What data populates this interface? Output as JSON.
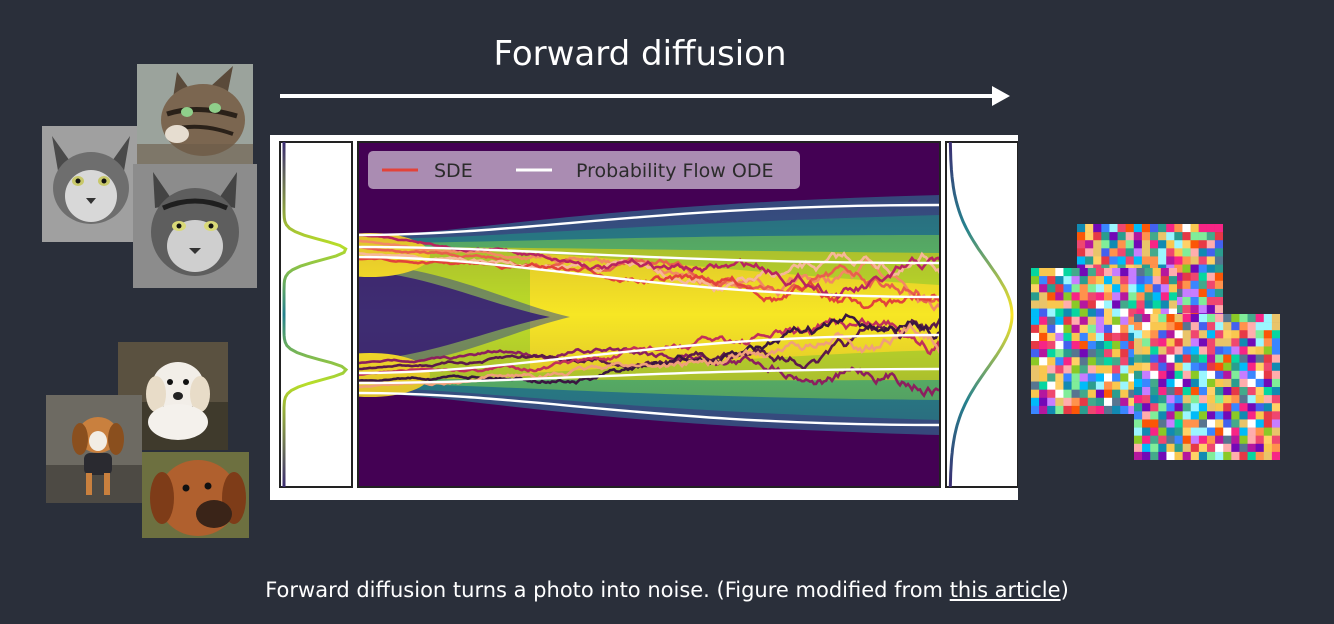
{
  "header": {
    "title": "Forward diffusion"
  },
  "figure": {
    "legend": {
      "sde": "SDE",
      "ode": "Probability Flow ODE"
    },
    "colors": {
      "sde_legend": "#e2433a",
      "ode_line": "#ffffff",
      "frame": "#222222",
      "background": "#2a2f3a"
    }
  },
  "caption": {
    "prefix": "Forward diffusion turns a photo into noise. (Figure modified from ",
    "link_text": "this article",
    "suffix": ")"
  },
  "images": {
    "cats": [
      "cat-photo",
      "cat-photo",
      "cat-photo"
    ],
    "dogs": [
      "dog-photo",
      "dog-photo",
      "dog-photo"
    ],
    "noise": [
      "noise-image",
      "noise-image",
      "noise-image"
    ]
  }
}
